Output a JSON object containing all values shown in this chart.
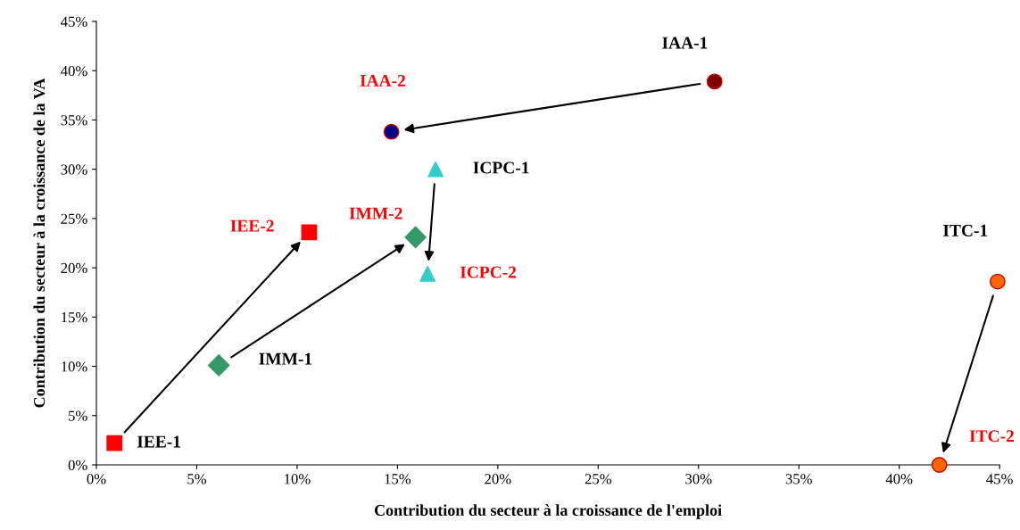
{
  "chart_data": {
    "type": "scatter",
    "xlabel": "Contribution du secteur à la croissance de l'emploi",
    "ylabel": "Contribution du secteur à la croissance de la VA",
    "xlim": [
      0,
      45
    ],
    "ylim": [
      0,
      45
    ],
    "xticks": [
      {
        "value": 0,
        "label": "0%"
      },
      {
        "value": 5,
        "label": "5%"
      },
      {
        "value": 10,
        "label": "10%"
      },
      {
        "value": 15,
        "label": "15%"
      },
      {
        "value": 20,
        "label": "20%"
      },
      {
        "value": 25,
        "label": "25%"
      },
      {
        "value": 30,
        "label": "30%"
      },
      {
        "value": 35,
        "label": "35%"
      },
      {
        "value": 40,
        "label": "40%"
      },
      {
        "value": 45,
        "label": "45%"
      }
    ],
    "yticks": [
      {
        "value": 0,
        "label": "0%"
      },
      {
        "value": 5,
        "label": "5%"
      },
      {
        "value": 10,
        "label": "10%"
      },
      {
        "value": 15,
        "label": "15%"
      },
      {
        "value": 20,
        "label": "20%"
      },
      {
        "value": 25,
        "label": "25%"
      },
      {
        "value": 30,
        "label": "30%"
      },
      {
        "value": 35,
        "label": "35%"
      },
      {
        "value": 40,
        "label": "40%"
      },
      {
        "value": 45,
        "label": "45%"
      }
    ],
    "grid": false,
    "legend": false,
    "series": [
      {
        "x": [
          30.8,
          14.7
        ],
        "values": [
          38.9,
          33.8
        ],
        "colors": [
          "#800000",
          "#000080"
        ],
        "marker": "circle"
      },
      {
        "x": [
          16.9,
          16.5
        ],
        "values": [
          30.0,
          19.4
        ],
        "colors": [
          "#33cccc",
          "#33cccc"
        ],
        "marker": "triangle"
      },
      {
        "x": [
          0.9,
          10.6
        ],
        "values": [
          2.2,
          23.6
        ],
        "colors": [
          "#ff0000",
          "#ff0000"
        ],
        "marker": "square"
      },
      {
        "x": [
          6.1,
          15.9
        ],
        "values": [
          10.1,
          23.1
        ],
        "colors": [
          "#339966",
          "#339966"
        ],
        "marker": "diamond"
      },
      {
        "x": [
          44.9,
          42.0
        ],
        "values": [
          18.6,
          0.0
        ],
        "colors": [
          "#ff6600",
          "#ff6600"
        ],
        "marker": "circle"
      }
    ],
    "annotations": [
      {
        "text": "IAA-1",
        "x": 30.8,
        "y": 38.9
      },
      {
        "text": "IAA-2",
        "x": 14.7,
        "y": 33.8
      },
      {
        "text": "ICPC-1",
        "x": 16.9,
        "y": 30.0
      },
      {
        "text": "ICPC-2",
        "x": 16.5,
        "y": 19.4
      },
      {
        "text": "IEE-1",
        "x": 0.9,
        "y": 2.2
      },
      {
        "text": "IEE-2",
        "x": 10.6,
        "y": 23.6
      },
      {
        "text": "IMM-1",
        "x": 6.1,
        "y": 10.1
      },
      {
        "text": "IMM-2",
        "x": 15.9,
        "y": 23.1
      },
      {
        "text": "ITC-1",
        "x": 44.9,
        "y": 18.6
      },
      {
        "text": "ITC-2",
        "x": 42.0,
        "y": 0.0
      }
    ]
  }
}
